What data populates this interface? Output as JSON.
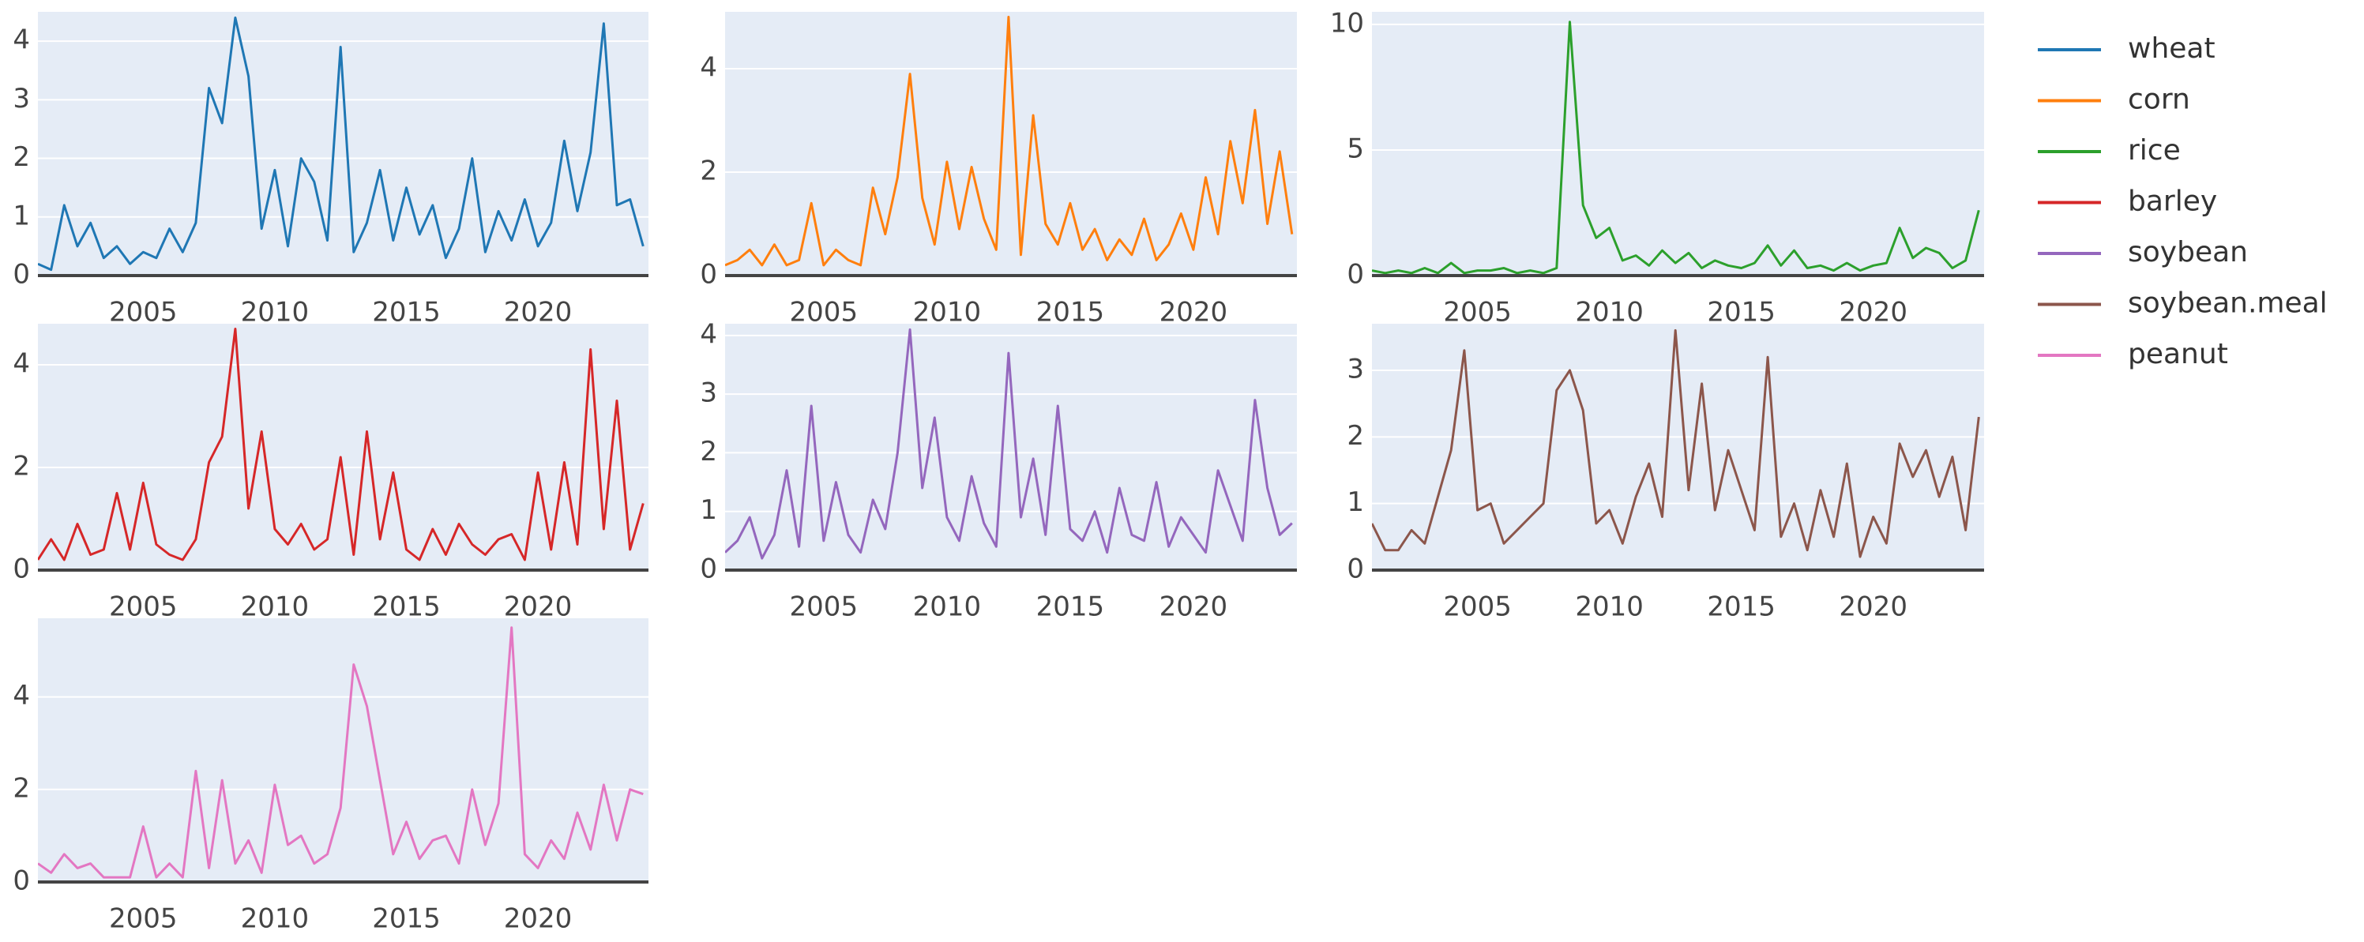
{
  "chart_data": [
    {
      "type": "line",
      "xlim": [
        2001,
        2024.2
      ],
      "xticks": [
        2005,
        2010,
        2015,
        2020
      ],
      "ylim": [
        0,
        4.5
      ],
      "yticks": [
        0,
        1,
        2,
        3,
        4
      ],
      "grid": true,
      "x": [
        2001,
        2001.5,
        2002,
        2002.5,
        2003,
        2003.5,
        2004,
        2004.5,
        2005,
        2005.5,
        2006,
        2006.5,
        2007,
        2007.5,
        2008,
        2008.5,
        2009,
        2009.5,
        2010,
        2010.5,
        2011,
        2011.5,
        2012,
        2012.5,
        2013,
        2013.5,
        2014,
        2014.5,
        2015,
        2015.5,
        2016,
        2016.5,
        2017,
        2017.5,
        2018,
        2018.5,
        2019,
        2019.5,
        2020,
        2020.5,
        2021,
        2021.5,
        2022,
        2022.5,
        2023,
        2023.5,
        2024
      ],
      "series": [
        {
          "name": "wheat",
          "color": "#1f77b4",
          "values": [
            0.2,
            0.1,
            1.2,
            0.5,
            0.9,
            0.3,
            0.5,
            0.2,
            0.4,
            0.3,
            0.8,
            0.4,
            0.9,
            3.2,
            2.6,
            4.4,
            3.4,
            0.8,
            1.8,
            0.5,
            2.0,
            1.6,
            0.6,
            3.9,
            0.4,
            0.9,
            1.8,
            0.6,
            1.5,
            0.7,
            1.2,
            0.3,
            0.8,
            2.0,
            0.4,
            1.1,
            0.6,
            1.3,
            0.5,
            0.9,
            2.3,
            1.1,
            2.1,
            4.3,
            1.2,
            1.3,
            0.5
          ]
        }
      ]
    },
    {
      "type": "line",
      "xlim": [
        2001,
        2024.2
      ],
      "xticks": [
        2005,
        2010,
        2015,
        2020
      ],
      "ylim": [
        0,
        5.1
      ],
      "yticks": [
        0,
        2,
        4
      ],
      "grid": true,
      "x": [
        2001,
        2001.5,
        2002,
        2002.5,
        2003,
        2003.5,
        2004,
        2004.5,
        2005,
        2005.5,
        2006,
        2006.5,
        2007,
        2007.5,
        2008,
        2008.5,
        2009,
        2009.5,
        2010,
        2010.5,
        2011,
        2011.5,
        2012,
        2012.5,
        2013,
        2013.5,
        2014,
        2014.5,
        2015,
        2015.5,
        2016,
        2016.5,
        2017,
        2017.5,
        2018,
        2018.5,
        2019,
        2019.5,
        2020,
        2020.5,
        2021,
        2021.5,
        2022,
        2022.5,
        2023,
        2023.5,
        2024
      ],
      "series": [
        {
          "name": "corn",
          "color": "#ff7f0e",
          "values": [
            0.2,
            0.3,
            0.5,
            0.2,
            0.6,
            0.2,
            0.3,
            1.4,
            0.2,
            0.5,
            0.3,
            0.2,
            1.7,
            0.8,
            1.9,
            3.9,
            1.5,
            0.6,
            2.2,
            0.9,
            2.1,
            1.1,
            0.5,
            5.0,
            0.4,
            3.1,
            1.0,
            0.6,
            1.4,
            0.5,
            0.9,
            0.3,
            0.7,
            0.4,
            1.1,
            0.3,
            0.6,
            1.2,
            0.5,
            1.9,
            0.8,
            2.6,
            1.4,
            3.2,
            1.0,
            2.4,
            0.8
          ]
        }
      ]
    },
    {
      "type": "line",
      "xlim": [
        2001,
        2024.2
      ],
      "xticks": [
        2005,
        2010,
        2015,
        2020
      ],
      "ylim": [
        0,
        10.5
      ],
      "yticks": [
        0,
        5,
        10
      ],
      "grid": true,
      "x": [
        2001,
        2001.5,
        2002,
        2002.5,
        2003,
        2003.5,
        2004,
        2004.5,
        2005,
        2005.5,
        2006,
        2006.5,
        2007,
        2007.5,
        2008,
        2008.5,
        2009,
        2009.5,
        2010,
        2010.5,
        2011,
        2011.5,
        2012,
        2012.5,
        2013,
        2013.5,
        2014,
        2014.5,
        2015,
        2015.5,
        2016,
        2016.5,
        2017,
        2017.5,
        2018,
        2018.5,
        2019,
        2019.5,
        2020,
        2020.5,
        2021,
        2021.5,
        2022,
        2022.5,
        2023,
        2023.5,
        2024
      ],
      "series": [
        {
          "name": "rice",
          "color": "#2ca02c",
          "values": [
            0.2,
            0.1,
            0.2,
            0.1,
            0.3,
            0.1,
            0.5,
            0.1,
            0.2,
            0.2,
            0.3,
            0.1,
            0.2,
            0.1,
            0.3,
            10.1,
            2.8,
            1.5,
            1.9,
            0.6,
            0.8,
            0.4,
            1.0,
            0.5,
            0.9,
            0.3,
            0.6,
            0.4,
            0.3,
            0.5,
            1.2,
            0.4,
            1.0,
            0.3,
            0.4,
            0.2,
            0.5,
            0.2,
            0.4,
            0.5,
            1.9,
            0.7,
            1.1,
            0.9,
            0.3,
            0.6,
            2.6
          ]
        }
      ]
    },
    {
      "type": "line",
      "xlim": [
        2001,
        2024.2
      ],
      "xticks": [
        2005,
        2010,
        2015,
        2020
      ],
      "ylim": [
        0,
        4.8
      ],
      "yticks": [
        0,
        2,
        4
      ],
      "grid": true,
      "x": [
        2001,
        2001.5,
        2002,
        2002.5,
        2003,
        2003.5,
        2004,
        2004.5,
        2005,
        2005.5,
        2006,
        2006.5,
        2007,
        2007.5,
        2008,
        2008.5,
        2009,
        2009.5,
        2010,
        2010.5,
        2011,
        2011.5,
        2012,
        2012.5,
        2013,
        2013.5,
        2014,
        2014.5,
        2015,
        2015.5,
        2016,
        2016.5,
        2017,
        2017.5,
        2018,
        2018.5,
        2019,
        2019.5,
        2020,
        2020.5,
        2021,
        2021.5,
        2022,
        2022.5,
        2023,
        2023.5,
        2024
      ],
      "series": [
        {
          "name": "barley",
          "color": "#d62728",
          "values": [
            0.2,
            0.6,
            0.2,
            0.9,
            0.3,
            0.4,
            1.5,
            0.4,
            1.7,
            0.5,
            0.3,
            0.2,
            0.6,
            2.1,
            2.6,
            4.7,
            1.2,
            2.7,
            0.8,
            0.5,
            0.9,
            0.4,
            0.6,
            2.2,
            0.3,
            2.7,
            0.6,
            1.9,
            0.4,
            0.2,
            0.8,
            0.3,
            0.9,
            0.5,
            0.3,
            0.6,
            0.7,
            0.2,
            1.9,
            0.4,
            2.1,
            0.5,
            4.3,
            0.8,
            3.3,
            0.4,
            1.3
          ]
        }
      ]
    },
    {
      "type": "line",
      "xlim": [
        2001,
        2024.2
      ],
      "xticks": [
        2005,
        2010,
        2015,
        2020
      ],
      "ylim": [
        0,
        4.2
      ],
      "yticks": [
        0,
        1,
        2,
        3,
        4
      ],
      "grid": true,
      "x": [
        2001,
        2001.5,
        2002,
        2002.5,
        2003,
        2003.5,
        2004,
        2004.5,
        2005,
        2005.5,
        2006,
        2006.5,
        2007,
        2007.5,
        2008,
        2008.5,
        2009,
        2009.5,
        2010,
        2010.5,
        2011,
        2011.5,
        2012,
        2012.5,
        2013,
        2013.5,
        2014,
        2014.5,
        2015,
        2015.5,
        2016,
        2016.5,
        2017,
        2017.5,
        2018,
        2018.5,
        2019,
        2019.5,
        2020,
        2020.5,
        2021,
        2021.5,
        2022,
        2022.5,
        2023,
        2023.5,
        2024
      ],
      "series": [
        {
          "name": "soybean",
          "color": "#9467bd",
          "values": [
            0.3,
            0.5,
            0.9,
            0.2,
            0.6,
            1.7,
            0.4,
            2.8,
            0.5,
            1.5,
            0.6,
            0.3,
            1.2,
            0.7,
            2.0,
            4.1,
            1.4,
            2.6,
            0.9,
            0.5,
            1.6,
            0.8,
            0.4,
            3.7,
            0.9,
            1.9,
            0.6,
            2.8,
            0.7,
            0.5,
            1.0,
            0.3,
            1.4,
            0.6,
            0.5,
            1.5,
            0.4,
            0.9,
            0.6,
            0.3,
            1.7,
            1.1,
            0.5,
            2.9,
            1.4,
            0.6,
            0.8
          ]
        }
      ]
    },
    {
      "type": "line",
      "xlim": [
        2001,
        2024.2
      ],
      "xticks": [
        2005,
        2010,
        2015,
        2020
      ],
      "ylim": [
        0,
        3.7
      ],
      "yticks": [
        0,
        1,
        2,
        3
      ],
      "grid": true,
      "x": [
        2001,
        2001.5,
        2002,
        2002.5,
        2003,
        2003.5,
        2004,
        2004.5,
        2005,
        2005.5,
        2006,
        2006.5,
        2007,
        2007.5,
        2008,
        2008.5,
        2009,
        2009.5,
        2010,
        2010.5,
        2011,
        2011.5,
        2012,
        2012.5,
        2013,
        2013.5,
        2014,
        2014.5,
        2015,
        2015.5,
        2016,
        2016.5,
        2017,
        2017.5,
        2018,
        2018.5,
        2019,
        2019.5,
        2020,
        2020.5,
        2021,
        2021.5,
        2022,
        2022.5,
        2023,
        2023.5,
        2024
      ],
      "series": [
        {
          "name": "soybean.meal",
          "color": "#8c564b",
          "values": [
            0.7,
            0.3,
            0.3,
            0.6,
            0.4,
            1.1,
            1.8,
            3.3,
            0.9,
            1.0,
            0.4,
            0.6,
            0.8,
            1.0,
            2.7,
            3.0,
            2.4,
            0.7,
            0.9,
            0.4,
            1.1,
            1.6,
            0.8,
            3.6,
            1.2,
            2.8,
            0.9,
            1.8,
            1.2,
            0.6,
            3.2,
            0.5,
            1.0,
            0.3,
            1.2,
            0.5,
            1.6,
            0.2,
            0.8,
            0.4,
            1.9,
            1.4,
            1.8,
            1.1,
            1.7,
            0.6,
            2.3
          ]
        }
      ]
    },
    {
      "type": "line",
      "xlim": [
        2001,
        2024.2
      ],
      "xticks": [
        2005,
        2010,
        2015,
        2020
      ],
      "ylim": [
        0,
        5.7
      ],
      "yticks": [
        0,
        2,
        4
      ],
      "grid": true,
      "x": [
        2001,
        2001.5,
        2002,
        2002.5,
        2003,
        2003.5,
        2004,
        2004.5,
        2005,
        2005.5,
        2006,
        2006.5,
        2007,
        2007.5,
        2008,
        2008.5,
        2009,
        2009.5,
        2010,
        2010.5,
        2011,
        2011.5,
        2012,
        2012.5,
        2013,
        2013.5,
        2014,
        2014.5,
        2015,
        2015.5,
        2016,
        2016.5,
        2017,
        2017.5,
        2018,
        2018.5,
        2019,
        2019.5,
        2020,
        2020.5,
        2021,
        2021.5,
        2022,
        2022.5,
        2023,
        2023.5,
        2024
      ],
      "series": [
        {
          "name": "peanut",
          "color": "#e377c2",
          "values": [
            0.4,
            0.2,
            0.6,
            0.3,
            0.4,
            0.1,
            0.1,
            0.1,
            1.2,
            0.1,
            0.4,
            0.1,
            2.4,
            0.3,
            2.2,
            0.4,
            0.9,
            0.2,
            2.1,
            0.8,
            1.0,
            0.4,
            0.6,
            1.6,
            4.7,
            3.8,
            2.2,
            0.6,
            1.3,
            0.5,
            0.9,
            1.0,
            0.4,
            2.0,
            0.8,
            1.7,
            5.5,
            0.6,
            0.3,
            0.9,
            0.5,
            1.5,
            0.7,
            2.1,
            0.9,
            2.0,
            1.9
          ]
        }
      ]
    }
  ]
}
